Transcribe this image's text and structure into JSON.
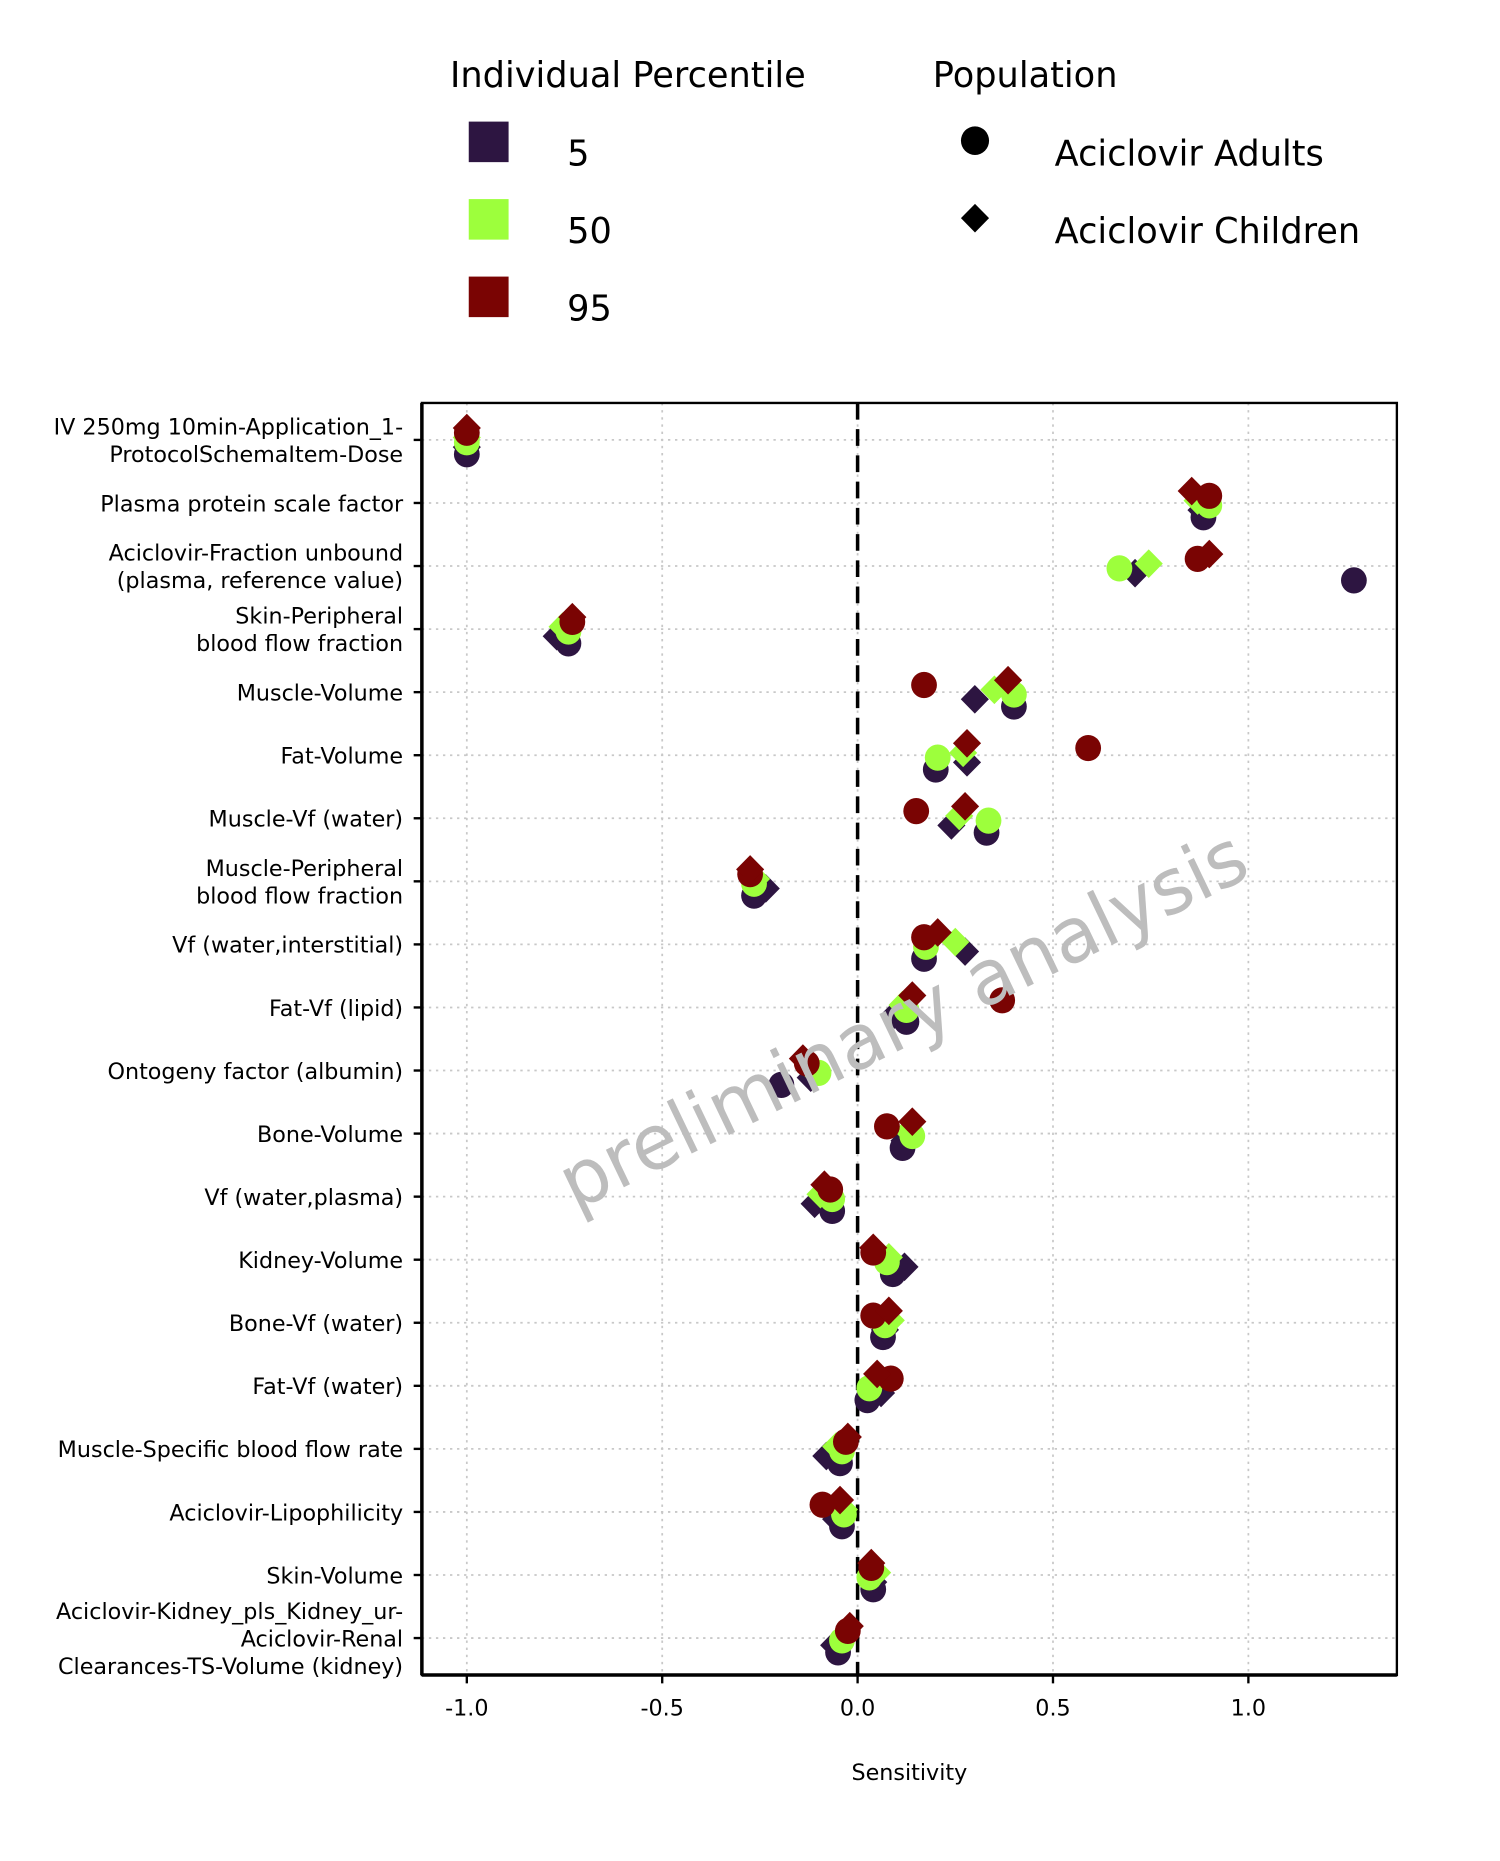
{
  "chart_data": {
    "type": "dot",
    "xlabel": "Sensitivity",
    "watermark": "preliminary analysis",
    "xlim": [
      -1.115,
      1.38
    ],
    "xticks": [
      {
        "value": -1,
        "label": "-1.0"
      },
      -0.5,
      {
        "value": 0,
        "label": "0.0"
      },
      0.5,
      {
        "value": 1,
        "label": "1.0"
      }
    ],
    "reference_line": 0,
    "grid": true,
    "legend_title": "Individual Percentile",
    "population_legend_title": "Population",
    "populations": [
      {
        "name": "Aciclovir Adults",
        "shape": "circle"
      },
      {
        "name": "Aciclovir Children",
        "shape": "diamond"
      }
    ],
    "categories": [
      "IV 250mg 10min-Application_1-\nProtocolSchemaItem-Dose",
      "Plasma protein scale factor",
      "Aciclovir-Fraction unbound\n(plasma, reference value)",
      "Skin-Peripheral\nblood flow fraction",
      "Muscle-Volume",
      "Fat-Volume",
      "Muscle-Vf (water)",
      "Muscle-Peripheral\nblood flow fraction",
      "Vf (water,interstitial)",
      "Fat-Vf (lipid)",
      "Ontogeny factor (albumin)",
      "Bone-Volume",
      "Vf (water,plasma)",
      "Kidney-Volume",
      "Bone-Vf (water)",
      "Fat-Vf (water)",
      "Muscle-Specific blood flow rate",
      "Aciclovir-Lipophilicity",
      "Skin-Volume",
      "Aciclovir-Kidney_pls_Kidney_ur-\nAciclovir-Renal\nClearances-TS-Volume (kidney)"
    ],
    "series": [
      {
        "name": "5",
        "color": "#2d1541",
        "values": [
          [
            -1.0,
            0.885,
            1.27,
            -0.74,
            0.4,
            0.2,
            0.33,
            -0.265,
            0.17,
            0.125,
            -0.195,
            0.115,
            -0.065,
            0.09,
            0.065,
            0.025,
            -0.045,
            -0.04,
            0.04,
            -0.05
          ],
          [
            -1.0,
            0.88,
            0.71,
            -0.77,
            0.3,
            0.28,
            0.24,
            -0.235,
            0.275,
            0.095,
            -0.12,
            0.12,
            -0.11,
            0.12,
            0.07,
            0.06,
            -0.08,
            -0.055,
            0.04,
            -0.06
          ]
        ]
      },
      {
        "name": "50",
        "color": "#9dff3c",
        "values": [
          [
            -1.0,
            0.9,
            0.67,
            -0.74,
            0.4,
            0.205,
            0.335,
            -0.265,
            0.175,
            0.125,
            -0.1,
            0.14,
            -0.065,
            0.075,
            0.07,
            0.03,
            -0.04,
            -0.035,
            0.03,
            -0.04
          ],
          [
            -1.0,
            0.87,
            0.745,
            -0.755,
            0.35,
            0.27,
            0.26,
            -0.26,
            0.25,
            0.115,
            -0.12,
            0.13,
            -0.095,
            0.08,
            0.085,
            0.04,
            -0.055,
            -0.035,
            0.05,
            -0.035
          ]
        ]
      },
      {
        "name": "95",
        "color": "#7a0403",
        "values": [
          [
            -1.0,
            0.9,
            0.87,
            -0.73,
            0.17,
            0.59,
            0.15,
            -0.275,
            0.17,
            0.37,
            -0.13,
            0.075,
            -0.07,
            0.04,
            0.04,
            0.085,
            -0.03,
            -0.09,
            0.035,
            -0.025
          ],
          [
            -1.0,
            0.855,
            0.9,
            -0.73,
            0.385,
            0.28,
            0.275,
            -0.275,
            0.205,
            0.14,
            -0.14,
            0.14,
            -0.085,
            0.04,
            0.08,
            0.05,
            -0.025,
            -0.045,
            0.035,
            -0.02
          ]
        ]
      }
    ]
  }
}
